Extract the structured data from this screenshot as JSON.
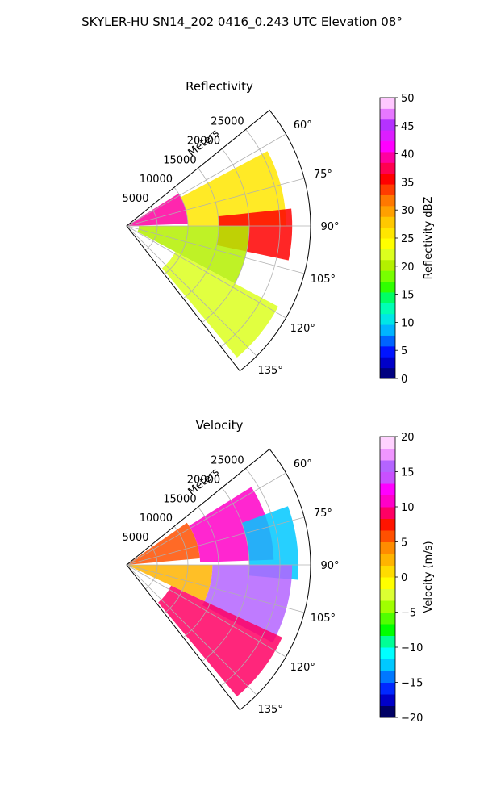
{
  "figure_title": "SKYLER-HU  SN14_202  0416_0.243 UTC Elevation 08°",
  "chart_data": [
    {
      "type": "heatmap",
      "projection": "polar sector (PPI)",
      "title": "Reflectivity",
      "radial_axis_label": "Meters",
      "radial_ticks": [
        5000,
        10000,
        15000,
        20000,
        25000
      ],
      "rlim": [
        0,
        30000
      ],
      "azimuth_ticks_deg": [
        60,
        75,
        90,
        105,
        120,
        135
      ],
      "azimuth_tick_labels": [
        "60°",
        "75°",
        "90°",
        "105°",
        "120°",
        "135°"
      ],
      "azimuth_range_deg": [
        51,
        142
      ],
      "grid": true,
      "colorbar": {
        "label": "Reflectivity dBZ",
        "min": 0,
        "max": 50,
        "ticks": [
          0,
          5,
          10,
          15,
          20,
          25,
          30,
          35,
          40,
          45,
          50
        ],
        "colors": [
          "#000080",
          "#0000c8",
          "#0014ff",
          "#0064ff",
          "#00b4ff",
          "#00e6e6",
          "#00ffb4",
          "#00ff64",
          "#30ff00",
          "#78ff00",
          "#b4f000",
          "#dcff1e",
          "#ffff00",
          "#ffe600",
          "#ffc800",
          "#ffa000",
          "#ff7800",
          "#ff3c00",
          "#ff0000",
          "#ff0050",
          "#ff00a0",
          "#ff00ff",
          "#dc1eff",
          "#b432ff",
          "#e678ff",
          "#ffc8ff"
        ]
      },
      "echo_regions": [
        {
          "azimuth_deg": [
            58,
            88
          ],
          "range_m": [
            0,
            10000
          ],
          "dbz": 40
        },
        {
          "azimuth_deg": [
            62,
            90
          ],
          "range_m": [
            10000,
            26000
          ],
          "dbz": 25
        },
        {
          "azimuth_deg": [
            84,
            102
          ],
          "range_m": [
            15000,
            27000
          ],
          "dbz": 35
        },
        {
          "azimuth_deg": [
            90,
            118
          ],
          "range_m": [
            2000,
            20000
          ],
          "dbz": 20
        },
        {
          "azimuth_deg": [
            118,
            140
          ],
          "range_m": [
            9000,
            28000
          ],
          "dbz": 22
        }
      ]
    },
    {
      "type": "heatmap",
      "projection": "polar sector (PPI)",
      "title": "Velocity",
      "radial_axis_label": "Meters",
      "radial_ticks": [
        5000,
        10000,
        15000,
        20000,
        25000
      ],
      "rlim": [
        0,
        30000
      ],
      "azimuth_ticks_deg": [
        60,
        75,
        90,
        105,
        120,
        135
      ],
      "azimuth_tick_labels": [
        "60°",
        "75°",
        "90°",
        "105°",
        "120°",
        "135°"
      ],
      "azimuth_range_deg": [
        51,
        142
      ],
      "grid": true,
      "colorbar": {
        "label": "Velocity (m/s)",
        "min": -20,
        "max": 20,
        "ticks": [
          -20,
          -15,
          -10,
          -5,
          0,
          5,
          10,
          15,
          20
        ],
        "colors": [
          "#000064",
          "#0000c8",
          "#0028ff",
          "#0078ff",
          "#00c8ff",
          "#00ffff",
          "#00ff96",
          "#00ff00",
          "#50ff00",
          "#a0ff00",
          "#dcff32",
          "#ffff00",
          "#ffdc00",
          "#ffb400",
          "#ff8c00",
          "#ff5000",
          "#ff1400",
          "#ff0064",
          "#ff00c8",
          "#ff00ff",
          "#c850ff",
          "#b464ff",
          "#f096ff",
          "#ffd2ff"
        ]
      },
      "echo_regions": [
        {
          "azimuth_deg": [
            55,
            85
          ],
          "range_m": [
            0,
            12000
          ],
          "velocity": 5
        },
        {
          "azimuth_deg": [
            58,
            88
          ],
          "range_m": [
            12000,
            24000
          ],
          "velocity": 10
        },
        {
          "azimuth_deg": [
            70,
            95
          ],
          "range_m": [
            20000,
            28000
          ],
          "velocity": -12
        },
        {
          "azimuth_deg": [
            90,
            115
          ],
          "range_m": [
            0,
            14000
          ],
          "velocity": 3
        },
        {
          "azimuth_deg": [
            90,
            118
          ],
          "range_m": [
            14000,
            27000
          ],
          "velocity": 15
        },
        {
          "azimuth_deg": [
            115,
            140
          ],
          "range_m": [
            8000,
            28000
          ],
          "velocity": 9
        }
      ]
    }
  ]
}
